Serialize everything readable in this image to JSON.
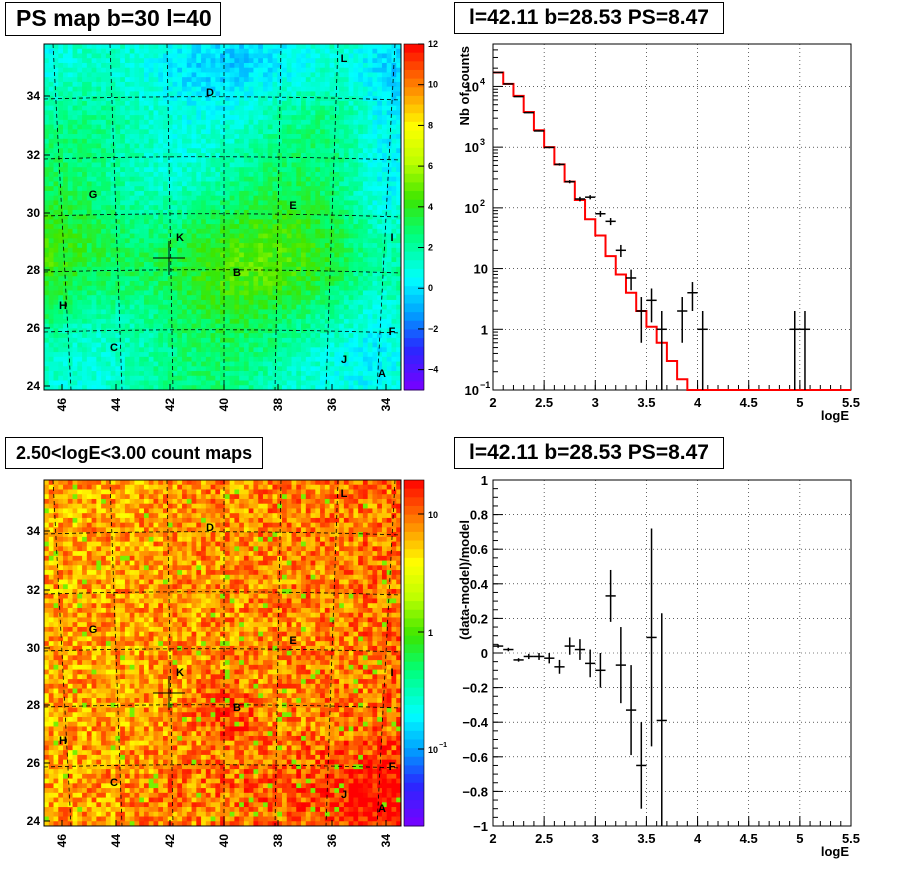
{
  "panels": {
    "tl_title": "PS map b=30 l=40",
    "tr_title": "l=42.11 b=28.53 PS=8.47",
    "bl_title": "2.50<logE<3.00 count maps",
    "br_title": "l=42.11 b=28.53 PS=8.47"
  },
  "chart_data": [
    {
      "type": "heatmap",
      "title": "PS map b=30 l=40",
      "x_ticks": [
        "46",
        "44",
        "42",
        "40",
        "38",
        "36",
        "34"
      ],
      "y_ticks": [
        "24",
        "26",
        "28",
        "30",
        "32",
        "34"
      ],
      "colorbar_ticks": [
        "12",
        "10",
        "8",
        "6",
        "4",
        "2",
        "0",
        "−2",
        "−4"
      ],
      "zlim": [
        -5,
        12
      ],
      "labels": [
        "L",
        "D",
        "G",
        "E",
        "K",
        "I",
        "B",
        "H",
        "F",
        "C",
        "J",
        "A"
      ],
      "colors": {
        "low": "#7a00ff",
        "mid": "#00ffff",
        "high": "#ff0000"
      }
    },
    {
      "type": "line",
      "title": "l=42.11 b=28.53 PS=8.47",
      "xlabel": "logE",
      "ylabel": "Nb of counts",
      "xlim": [
        2,
        5.5
      ],
      "ylim": [
        0.1,
        50000
      ],
      "yscale": "log",
      "x_ticks": [
        "2",
        "2.5",
        "3",
        "3.5",
        "4",
        "4.5",
        "5",
        "5.5"
      ],
      "y_ticks": [
        "10",
        "1",
        "10"
      ],
      "y_tick_exps": [
        "4",
        "3",
        "2",
        "−1"
      ],
      "grid": true,
      "series": [
        {
          "type": "step",
          "color": "#ff0000",
          "edges": [
            2.0,
            2.1,
            2.2,
            2.3,
            2.4,
            2.5,
            2.6,
            2.7,
            2.8,
            2.9,
            3.0,
            3.1,
            3.2,
            3.3,
            3.4,
            3.5,
            3.6,
            3.7,
            3.8,
            3.9,
            4.0,
            5.5
          ],
          "values": [
            17000,
            11000,
            7000,
            3800,
            1900,
            1000,
            520,
            270,
            135,
            65,
            35,
            16,
            8,
            4,
            2,
            1.1,
            0.6,
            0.3,
            0.15,
            0.1,
            0.1
          ]
        },
        {
          "type": "errorbar",
          "color": "#000000",
          "x": [
            2.05,
            2.15,
            2.25,
            2.35,
            2.45,
            2.55,
            2.65,
            2.75,
            2.85,
            2.95,
            3.05,
            3.15,
            3.25,
            3.35,
            3.45,
            3.55,
            3.65,
            3.85,
            3.95,
            4.05,
            4.95,
            5.05
          ],
          "y": [
            17000,
            11000,
            6800,
            3700,
            1850,
            990,
            520,
            270,
            140,
            150,
            80,
            60,
            20,
            7,
            2,
            3,
            1,
            2,
            4,
            1,
            1,
            1
          ],
          "yerr_lo": [
            130,
            105,
            82,
            61,
            43,
            31,
            23,
            16,
            12,
            12,
            9,
            8,
            4.5,
            2.6,
            1.4,
            1.7,
            0.95,
            1.4,
            2,
            0.95,
            0.95,
            0.95
          ],
          "yerr_hi": [
            130,
            105,
            82,
            61,
            43,
            31,
            23,
            16,
            12,
            12,
            9,
            8,
            4.5,
            2.6,
            1.4,
            1.7,
            1,
            1.4,
            2,
            1,
            1,
            1
          ]
        }
      ]
    },
    {
      "type": "heatmap",
      "title": "2.50<logE<3.00 count maps",
      "x_ticks": [
        "46",
        "44",
        "42",
        "40",
        "38",
        "36",
        "34"
      ],
      "y_ticks": [
        "24",
        "26",
        "28",
        "30",
        "32",
        "34"
      ],
      "colorbar_ticks": [
        "10",
        "1",
        "10"
      ],
      "colorbar_tick_exp": "−1",
      "zscale": "log",
      "labels": [
        "L",
        "D",
        "G",
        "E",
        "K",
        "I",
        "B",
        "H",
        "F",
        "C",
        "J",
        "A"
      ],
      "colors": {
        "low": "#7a00ff",
        "mid": "#00ff00",
        "high": "#ff0000"
      }
    },
    {
      "type": "scatter",
      "title": "l=42.11 b=28.53 PS=8.47",
      "xlabel": "logE",
      "ylabel": "(data-model)/model",
      "xlim": [
        2,
        5.5
      ],
      "ylim": [
        -1,
        1
      ],
      "x_ticks": [
        "2",
        "2.5",
        "3",
        "3.5",
        "4",
        "4.5",
        "5",
        "5.5"
      ],
      "y_ticks": [
        "1",
        "0.8",
        "0.6",
        "0.4",
        "0.2",
        "0",
        "−0.2",
        "−0.4",
        "−0.6",
        "−0.8",
        "−1"
      ],
      "grid": true,
      "series": [
        {
          "type": "errorbar",
          "color": "#000000",
          "x": [
            2.05,
            2.15,
            2.25,
            2.35,
            2.45,
            2.55,
            2.65,
            2.75,
            2.85,
            2.95,
            3.05,
            3.15,
            3.25,
            3.35,
            3.45,
            3.55,
            3.65
          ],
          "y": [
            0.04,
            0.02,
            -0.04,
            -0.02,
            -0.02,
            -0.03,
            -0.08,
            0.04,
            0.02,
            -0.06,
            -0.1,
            0.33,
            -0.07,
            -0.33,
            -0.65,
            0.09,
            -0.39
          ],
          "yerr": [
            0.01,
            0.01,
            0.01,
            0.015,
            0.02,
            0.03,
            0.04,
            0.05,
            0.06,
            0.08,
            0.1,
            0.15,
            0.22,
            0.26,
            0.25,
            0.63,
            0.62
          ]
        }
      ]
    }
  ]
}
